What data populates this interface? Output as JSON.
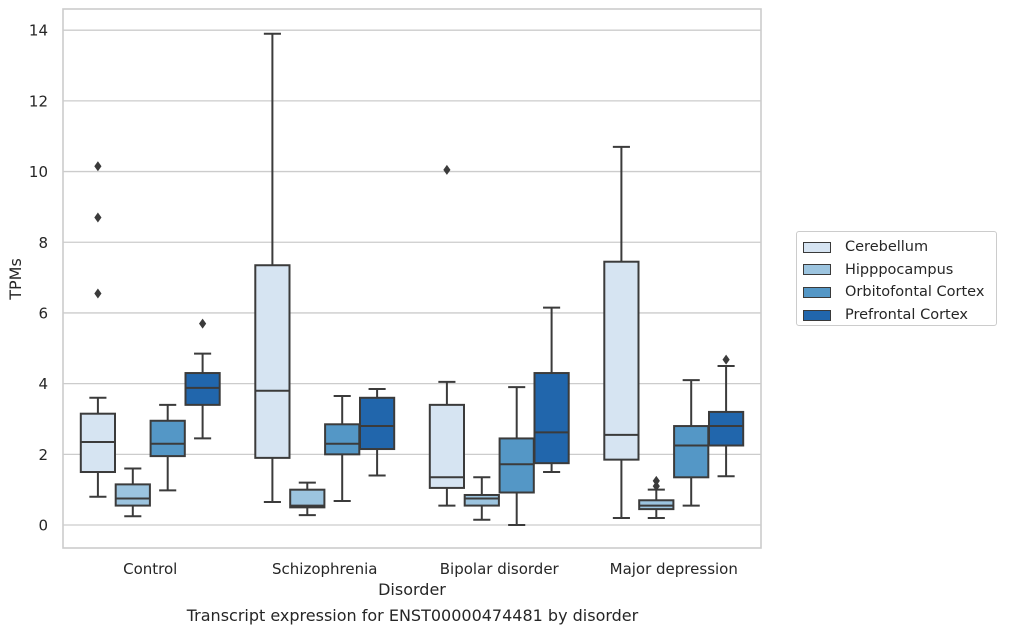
{
  "chart_data": {
    "type": "box",
    "xlabel": "Disorder",
    "ylabel": "TPMs",
    "caption": "Transcript expression for ENST00000474481 by disorder",
    "ylim": [
      -0.65,
      14.6
    ],
    "yticks": [
      0,
      2,
      4,
      6,
      8,
      10,
      12,
      14
    ],
    "grid": "horizontal",
    "legend_position": "right",
    "categories": [
      "Control",
      "Schizophrenia",
      "Bipolar disorder",
      "Major depression"
    ],
    "series": [
      {
        "name": "Cerebellum",
        "color": "#d6e4f2",
        "boxes": [
          {
            "whisker_low": 0.8,
            "q1": 1.5,
            "median": 2.35,
            "q3": 3.15,
            "whisker_high": 3.6,
            "outliers": [
              6.55,
              8.7,
              10.15
            ]
          },
          {
            "whisker_low": 0.65,
            "q1": 1.9,
            "median": 3.8,
            "q3": 7.35,
            "whisker_high": 13.9,
            "outliers": []
          },
          {
            "whisker_low": 0.55,
            "q1": 1.05,
            "median": 1.35,
            "q3": 3.4,
            "whisker_high": 4.05,
            "outliers": [
              10.05
            ]
          },
          {
            "whisker_low": 0.2,
            "q1": 1.85,
            "median": 2.55,
            "q3": 7.45,
            "whisker_high": 10.7,
            "outliers": []
          }
        ]
      },
      {
        "name": "Hipppocampus",
        "color": "#9cc4df",
        "boxes": [
          {
            "whisker_low": 0.25,
            "q1": 0.55,
            "median": 0.75,
            "q3": 1.15,
            "whisker_high": 1.6,
            "outliers": []
          },
          {
            "whisker_low": 0.28,
            "q1": 0.5,
            "median": 0.55,
            "q3": 1.0,
            "whisker_high": 1.2,
            "outliers": []
          },
          {
            "whisker_low": 0.15,
            "q1": 0.55,
            "median": 0.75,
            "q3": 0.85,
            "whisker_high": 1.35,
            "outliers": []
          },
          {
            "whisker_low": 0.2,
            "q1": 0.45,
            "median": 0.55,
            "q3": 0.7,
            "whisker_high": 1.0,
            "outliers": [
              1.1,
              1.25
            ]
          }
        ]
      },
      {
        "name": "Orbitofontal Cortex",
        "color": "#5497c6",
        "boxes": [
          {
            "whisker_low": 0.98,
            "q1": 1.95,
            "median": 2.3,
            "q3": 2.95,
            "whisker_high": 3.4,
            "outliers": []
          },
          {
            "whisker_low": 0.68,
            "q1": 2.0,
            "median": 2.3,
            "q3": 2.85,
            "whisker_high": 3.65,
            "outliers": []
          },
          {
            "whisker_low": 0.0,
            "q1": 0.92,
            "median": 1.72,
            "q3": 2.45,
            "whisker_high": 3.9,
            "outliers": []
          },
          {
            "whisker_low": 0.55,
            "q1": 1.35,
            "median": 2.25,
            "q3": 2.8,
            "whisker_high": 4.1,
            "outliers": []
          }
        ]
      },
      {
        "name": "Prefrontal Cortex",
        "color": "#2166ac",
        "boxes": [
          {
            "whisker_low": 2.45,
            "q1": 3.4,
            "median": 3.88,
            "q3": 4.3,
            "whisker_high": 4.85,
            "outliers": [
              5.7
            ]
          },
          {
            "whisker_low": 1.4,
            "q1": 2.15,
            "median": 2.8,
            "q3": 3.6,
            "whisker_high": 3.85,
            "outliers": []
          },
          {
            "whisker_low": 1.5,
            "q1": 1.75,
            "median": 2.62,
            "q3": 4.3,
            "whisker_high": 6.15,
            "outliers": []
          },
          {
            "whisker_low": 1.38,
            "q1": 2.25,
            "median": 2.8,
            "q3": 3.2,
            "whisker_high": 4.5,
            "outliers": [
              4.68
            ]
          }
        ]
      }
    ]
  }
}
